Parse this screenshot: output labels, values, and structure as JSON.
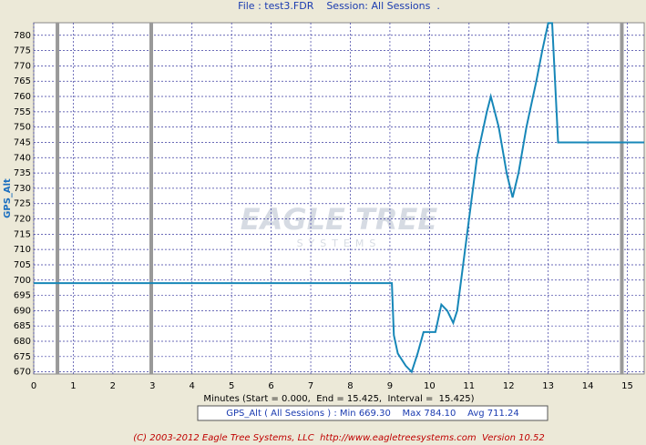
{
  "chart_data": {
    "type": "line",
    "title": "File : test3.FDR    Session: All Sessions  .",
    "y_label": "GPS_Alt",
    "x_label": "Minutes (Start = 0.000,  End = 15.425,  Interval =  15.425)",
    "stats": "GPS_Alt ( All Sessions ) : Min 669.30    Max 784.10    Avg 711.24",
    "footer": "(C) 2003-2012 Eagle Tree Systems, LLC  http://www.eagletreesystems.com  Version 10.52",
    "watermark": [
      "EAGLE TREE",
      "SYSTEMS"
    ],
    "x": [
      0,
      9.05,
      9.1,
      9.2,
      9.3,
      9.4,
      9.55,
      9.7,
      9.85,
      10.15,
      10.3,
      10.45,
      10.6,
      10.7,
      10.85,
      11.0,
      11.2,
      11.45,
      11.55,
      11.75,
      11.95,
      12.1,
      12.25,
      12.45,
      12.7,
      12.85,
      13.0,
      13.1,
      13.25,
      15.425
    ],
    "series": [
      {
        "name": "GPS_Alt",
        "color": "#1787b8",
        "values": [
          699,
          699,
          682,
          676,
          674,
          672,
          670,
          676,
          683,
          683,
          692,
          690,
          686,
          690,
          705,
          720,
          740,
          755,
          760,
          750,
          735,
          727,
          735,
          750,
          765,
          775,
          784,
          784,
          745,
          745
        ]
      }
    ],
    "session_markers": [
      0.6,
      2.97,
      14.86
    ],
    "xlim": [
      0,
      15.425
    ],
    "ylim": [
      669.3,
      784.1
    ],
    "xticks": [
      0,
      1,
      2,
      3,
      4,
      5,
      6,
      7,
      8,
      9,
      10,
      11,
      12,
      13,
      14,
      15
    ],
    "yticks": [
      670,
      675,
      680,
      685,
      690,
      695,
      700,
      705,
      710,
      715,
      720,
      725,
      730,
      735,
      740,
      745,
      750,
      755,
      760,
      765,
      770,
      775,
      780
    ],
    "grid": true
  }
}
